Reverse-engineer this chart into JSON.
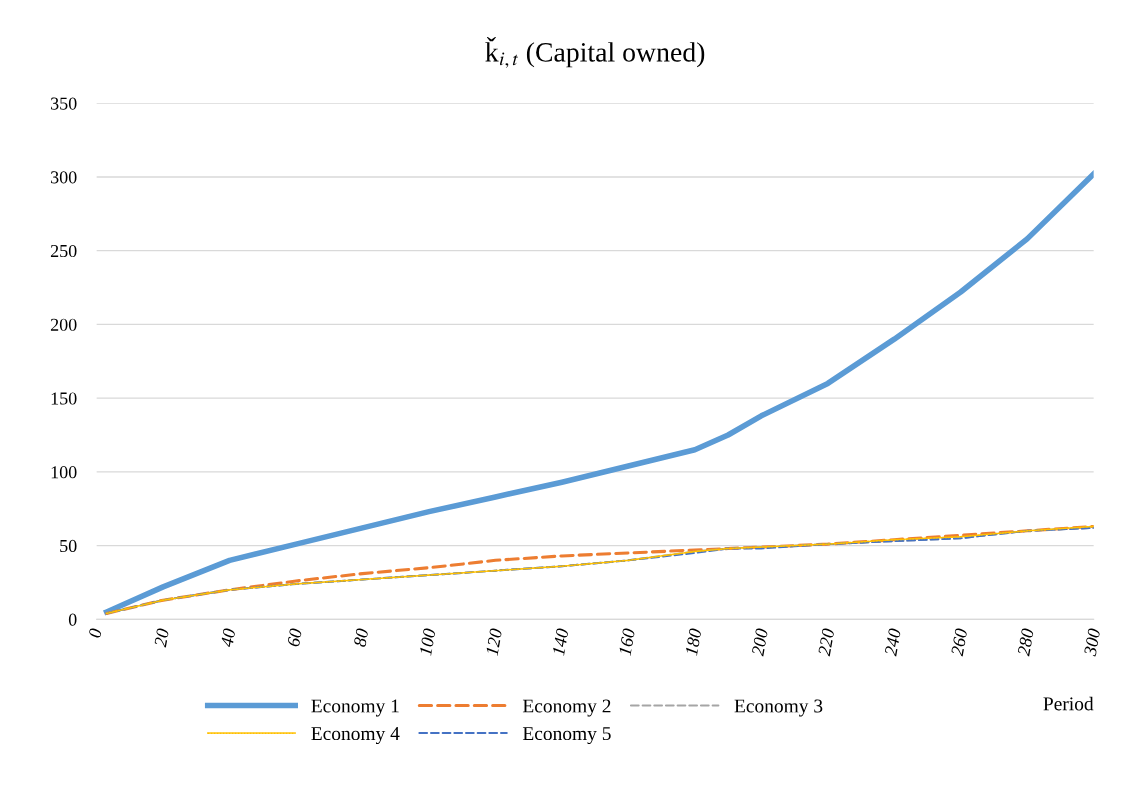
{
  "chart_data": {
    "type": "line",
    "title": "ǩ$_{i,t}$ (Capital owned)",
    "xlabel": "Period",
    "xlim": [
      0,
      300
    ],
    "xticks": [
      0,
      20,
      40,
      60,
      80,
      100,
      120,
      140,
      160,
      180,
      200,
      220,
      240,
      260,
      280,
      300
    ],
    "ylim": [
      0,
      350
    ],
    "yticks": [
      0,
      50,
      100,
      150,
      200,
      250,
      300,
      350
    ],
    "grid": "y",
    "legend": "bottom",
    "x": [
      3,
      20,
      40,
      60,
      80,
      100,
      120,
      140,
      160,
      180,
      190,
      200,
      220,
      240,
      260,
      280,
      300
    ],
    "series": [
      {
        "name": "Economy 1",
        "color": "#5b9bd5",
        "line_style": "solid",
        "values": [
          5,
          22,
          40,
          51,
          62,
          73,
          83,
          93,
          104,
          115,
          125,
          138,
          160,
          190,
          222,
          258,
          302
        ]
      },
      {
        "name": "Economy 2",
        "color": "#ed7d31",
        "line_style": "dashed",
        "values": [
          4,
          13,
          20,
          26,
          31,
          35,
          40,
          43,
          45,
          47,
          48,
          49,
          51,
          54,
          57,
          60,
          63
        ]
      },
      {
        "name": "Economy 3",
        "color": "#a5a5a5",
        "line_style": "dashed",
        "values": [
          4,
          13,
          20,
          24,
          27,
          30,
          33,
          36,
          40,
          46,
          48,
          49,
          51,
          53,
          55,
          60,
          62
        ]
      },
      {
        "name": "Economy 4",
        "color": "#ffc000",
        "line_style": "dotted",
        "values": [
          4,
          13,
          20,
          24,
          27,
          30,
          33,
          36,
          40,
          46,
          48,
          49,
          51,
          54,
          56,
          60,
          63
        ]
      },
      {
        "name": "Economy 5",
        "color": "#4472c4",
        "line_style": "dashed",
        "values": [
          4,
          13,
          20,
          24,
          27,
          30,
          33,
          36,
          40,
          45,
          48,
          48,
          51,
          53,
          55,
          60,
          62
        ]
      }
    ]
  }
}
